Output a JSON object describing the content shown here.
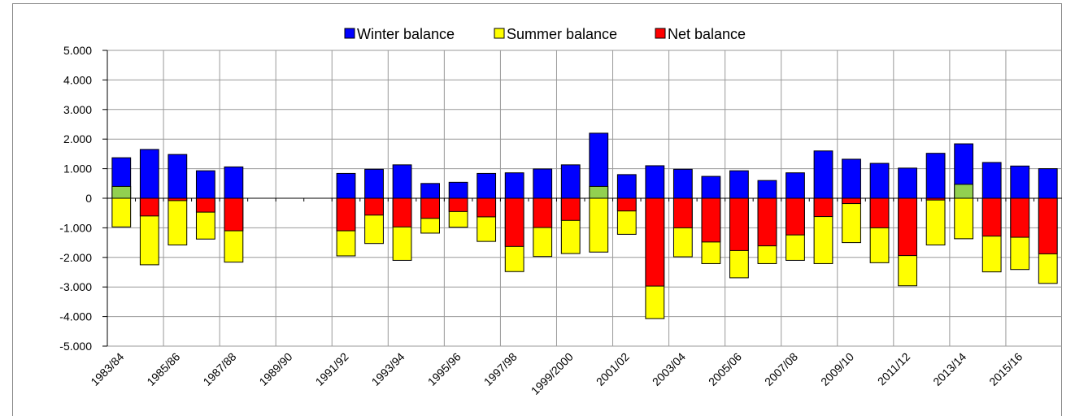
{
  "chart_data": {
    "type": "bar",
    "categories": [
      "1983/84",
      null,
      "1985/86",
      null,
      "1987/88",
      null,
      "1989/90",
      null,
      "1991/92",
      null,
      "1993/94",
      null,
      "1995/96",
      null,
      "1997/98",
      null,
      "1999/2000",
      null,
      "2001/02",
      null,
      "2003/04",
      null,
      "2005/06",
      null,
      "2007/08",
      null,
      "2009/10",
      null,
      "2011/12",
      null,
      "2013/14",
      null,
      "2015/16",
      null
    ],
    "series": [
      {
        "name": "Winter balance",
        "color": "#0000ff",
        "values": [
          1.37,
          1.65,
          1.48,
          0.93,
          1.06,
          null,
          null,
          null,
          0.84,
          0.98,
          1.13,
          0.5,
          0.54,
          0.84,
          0.86,
          0.99,
          1.13,
          2.2,
          0.8,
          1.1,
          0.98,
          0.74,
          0.93,
          0.6,
          0.86,
          1.6,
          1.32,
          1.18,
          1.02,
          1.52,
          1.84,
          1.21,
          1.09,
          1.0
        ]
      },
      {
        "name": "Summer balance",
        "color": "#ffff00",
        "values": [
          -0.97,
          -2.25,
          -1.58,
          -1.38,
          -2.16,
          null,
          null,
          null,
          -1.95,
          -1.53,
          -2.1,
          -1.18,
          -0.98,
          -1.46,
          -2.48,
          -1.97,
          -1.87,
          -1.82,
          -1.22,
          -4.07,
          -1.98,
          -2.21,
          -2.69,
          -2.21,
          -2.1,
          -2.21,
          -1.5,
          -2.18,
          -2.96,
          -1.58,
          -1.37,
          -2.49,
          -2.41,
          -2.88
        ]
      },
      {
        "name": "Net balance",
        "color": "#ff0000",
        "positive_color": "#92d050",
        "values": [
          0.4,
          -0.6,
          -0.08,
          -0.47,
          -1.1,
          null,
          null,
          null,
          -1.1,
          -0.57,
          -0.97,
          -0.68,
          -0.45,
          -0.63,
          -1.63,
          -0.99,
          -0.75,
          0.4,
          -0.43,
          -2.97,
          -1.0,
          -1.48,
          -1.77,
          -1.61,
          -1.24,
          -0.62,
          -0.18,
          -1.0,
          -1.94,
          -0.06,
          0.47,
          -1.28,
          -1.32,
          -1.88
        ]
      }
    ],
    "ylim": [
      -5,
      5
    ],
    "yticks": [
      {
        "value": -5,
        "label": "-5.000"
      },
      {
        "value": -4,
        "label": "-4.000"
      },
      {
        "value": -3,
        "label": "-3.000"
      },
      {
        "value": -2,
        "label": "-2.000"
      },
      {
        "value": -1,
        "label": "-1.000"
      },
      0,
      {
        "value": 1,
        "label": "1.000"
      },
      {
        "value": 2,
        "label": "2.000"
      },
      {
        "value": 3,
        "label": "3.000"
      },
      {
        "value": 4,
        "label": "4.000"
      },
      {
        "value": 5,
        "label": "5.000"
      }
    ],
    "grid": true,
    "legend": "top"
  }
}
